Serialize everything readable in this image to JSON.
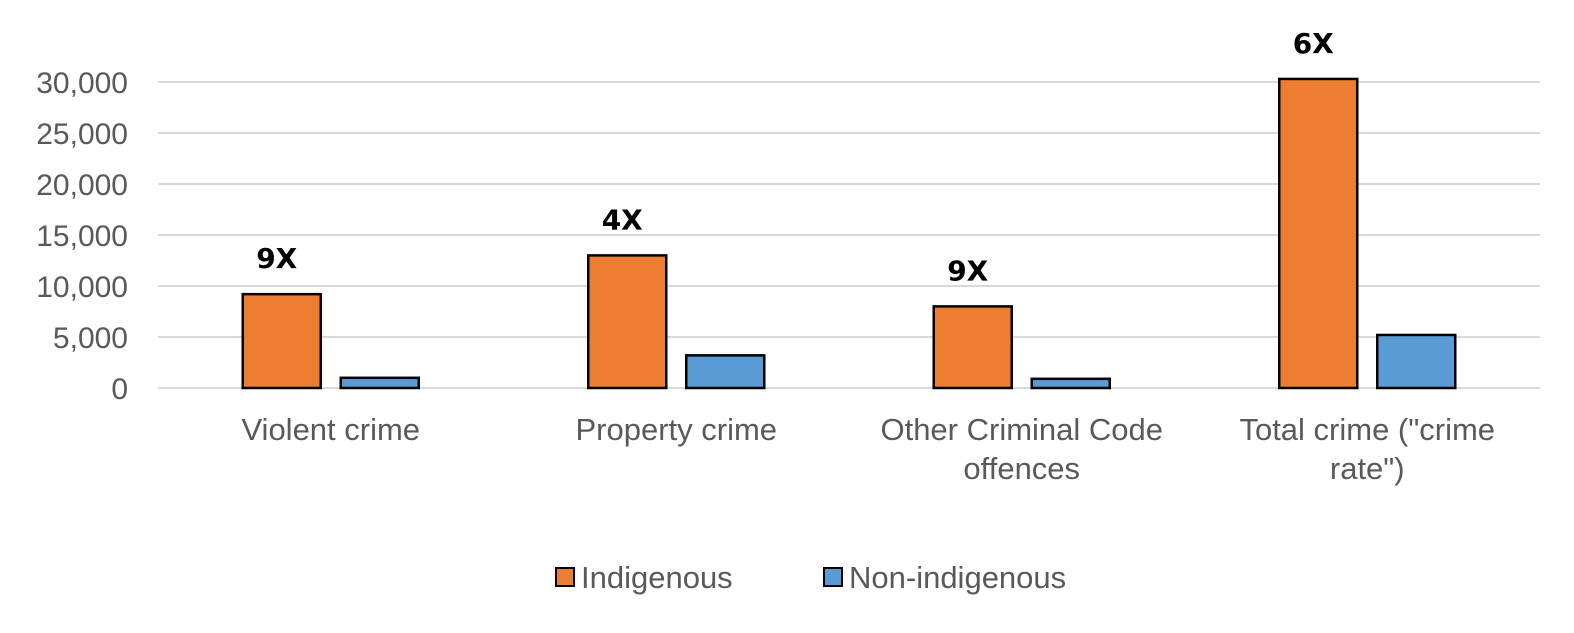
{
  "chart_data": {
    "type": "bar",
    "title": "",
    "xlabel": "",
    "ylabel": "",
    "ylim": [
      0,
      30000
    ],
    "yticks": [
      0,
      5000,
      10000,
      15000,
      20000,
      25000,
      30000
    ],
    "ytick_labels": [
      "0",
      "5,000",
      "10,000",
      "15,000",
      "20,000",
      "25,000",
      "30,000"
    ],
    "grid": true,
    "legend_position": "bottom",
    "categories": [
      [
        "Violent crime"
      ],
      [
        "Property crime"
      ],
      [
        "Other Criminal Code",
        "offences"
      ],
      [
        "Total crime (\"crime",
        "rate\")"
      ]
    ],
    "series": [
      {
        "name": "Indigenous",
        "color": "#ed7d31",
        "values": [
          9200,
          13000,
          8000,
          30300
        ]
      },
      {
        "name": "Non-indigenous",
        "color": "#5b9bd5",
        "values": [
          1000,
          3200,
          900,
          5200
        ]
      }
    ],
    "annotations": [
      "9X",
      "4X",
      "9X",
      "6X"
    ]
  }
}
